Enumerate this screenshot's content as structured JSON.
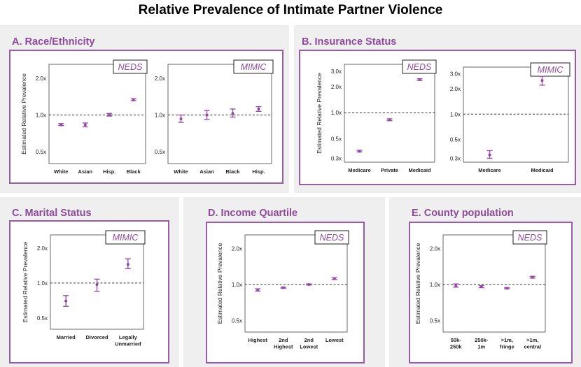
{
  "title": "Relative Prevalence of Intimate Partner Violence",
  "colors": {
    "accent": "#8e4a9e",
    "panel_bg": "#efefef",
    "frame": "#9b5aaa",
    "errorbar": "#9b4fa6",
    "dashed_line": "#333333",
    "text": "#222222"
  },
  "y_label": "Estimated Relative Prevalence",
  "chart_data": [
    {
      "panel": "A. Race/Ethnicity",
      "source": "NEDS",
      "type": "scatter",
      "y_scale": "log",
      "ylim": [
        0.4,
        2.6
      ],
      "yticks": [
        {
          "v": 2.0,
          "label": "2.0x"
        },
        {
          "v": 1.0,
          "label": "1.0x"
        },
        {
          "v": 0.5,
          "label": "0.5x"
        }
      ],
      "show_ylabel": true,
      "categories": [
        "White",
        "Asian",
        "Hisp.",
        "Black"
      ],
      "values": [
        0.83,
        0.83,
        1.0,
        1.33
      ],
      "ci_low": [
        0.82,
        0.8,
        0.98,
        1.31
      ],
      "ci_high": [
        0.85,
        0.86,
        1.03,
        1.36
      ]
    },
    {
      "panel": "A. Race/Ethnicity",
      "source": "MIMIC",
      "type": "scatter",
      "y_scale": "log",
      "ylim": [
        0.4,
        2.6
      ],
      "yticks": [
        {
          "v": 2.0,
          "label": "2.0x"
        },
        {
          "v": 1.0,
          "label": "1.0x"
        },
        {
          "v": 0.5,
          "label": "0.5x"
        }
      ],
      "show_ylabel": false,
      "categories": [
        "White",
        "Asian",
        "Black",
        "Hisp."
      ],
      "values": [
        0.93,
        1.0,
        1.03,
        1.12
      ],
      "ci_low": [
        0.87,
        0.92,
        0.96,
        1.07
      ],
      "ci_high": [
        1.0,
        1.09,
        1.12,
        1.17
      ]
    },
    {
      "panel": "B. Insurance Status",
      "source": "NEDS",
      "type": "scatter",
      "y_scale": "log",
      "ylim": [
        0.27,
        3.6
      ],
      "yticks": [
        {
          "v": 3.0,
          "label": "3.0x"
        },
        {
          "v": 2.0,
          "label": "2.0x"
        },
        {
          "v": 1.0,
          "label": "1.0x"
        },
        {
          "v": 0.5,
          "label": "0.5x"
        },
        {
          "v": 0.3,
          "label": "0.3x"
        }
      ],
      "show_ylabel": true,
      "categories": [
        "Medicare",
        "Private",
        "Medicaid"
      ],
      "values": [
        0.36,
        0.83,
        2.4
      ],
      "ci_low": [
        0.355,
        0.81,
        2.35
      ],
      "ci_high": [
        0.37,
        0.85,
        2.46
      ]
    },
    {
      "panel": "B. Insurance Status",
      "source": "MIMIC",
      "type": "scatter",
      "y_scale": "log",
      "ylim": [
        0.27,
        3.6
      ],
      "yticks": [
        {
          "v": 3.0,
          "label": "3.0x"
        },
        {
          "v": 2.0,
          "label": "2.0x"
        },
        {
          "v": 1.0,
          "label": "1.0x"
        },
        {
          "v": 0.5,
          "label": "0.5x"
        },
        {
          "v": 0.3,
          "label": "0.3x"
        }
      ],
      "show_ylabel": false,
      "categories": [
        "Medicare",
        "Medicaid"
      ],
      "values": [
        0.33,
        2.5
      ],
      "ci_low": [
        0.3,
        2.2
      ],
      "ci_high": [
        0.37,
        2.8
      ]
    },
    {
      "panel": "C. Marital Status",
      "source": "MIMIC",
      "type": "scatter",
      "y_scale": "log",
      "ylim": [
        0.4,
        2.6
      ],
      "yticks": [
        {
          "v": 2.0,
          "label": "2.0x"
        },
        {
          "v": 1.0,
          "label": "1.0x"
        },
        {
          "v": 0.5,
          "label": "0.5x"
        }
      ],
      "show_ylabel": true,
      "categories": [
        "Married",
        "Divorced",
        "Legally\nUnmarried"
      ],
      "values": [
        0.7,
        0.97,
        1.45
      ],
      "ci_low": [
        0.63,
        0.85,
        1.33
      ],
      "ci_high": [
        0.78,
        1.08,
        1.62
      ]
    },
    {
      "panel": "D. Income Quartile",
      "source": "NEDS",
      "type": "scatter",
      "y_scale": "log",
      "ylim": [
        0.4,
        2.6
      ],
      "yticks": [
        {
          "v": 2.0,
          "label": "2.0x"
        },
        {
          "v": 1.0,
          "label": "1.0x"
        },
        {
          "v": 0.5,
          "label": "0.5x"
        }
      ],
      "show_ylabel": true,
      "categories": [
        "Highest",
        "2nd\nHighest",
        "2nd\nLowest",
        "Lowest"
      ],
      "values": [
        0.9,
        0.94,
        1.0,
        1.12
      ],
      "ci_low": [
        0.88,
        0.93,
        0.99,
        1.1
      ],
      "ci_high": [
        0.92,
        0.95,
        1.01,
        1.14
      ]
    },
    {
      "panel": "E. County population",
      "source": "NEDS",
      "type": "scatter",
      "y_scale": "log",
      "ylim": [
        0.4,
        2.6
      ],
      "yticks": [
        {
          "v": 2.0,
          "label": "2.0x"
        },
        {
          "v": 1.0,
          "label": "1.0x"
        },
        {
          "v": 0.5,
          "label": "0.5x"
        }
      ],
      "show_ylabel": true,
      "categories": [
        "50k-\n250k",
        "250k-\n1m",
        ">1m,\nfringe",
        ">1m,\ncentral"
      ],
      "values": [
        0.98,
        0.96,
        0.93,
        1.15
      ],
      "ci_low": [
        0.95,
        0.94,
        0.92,
        1.13
      ],
      "ci_high": [
        1.01,
        0.98,
        0.94,
        1.17
      ]
    }
  ]
}
